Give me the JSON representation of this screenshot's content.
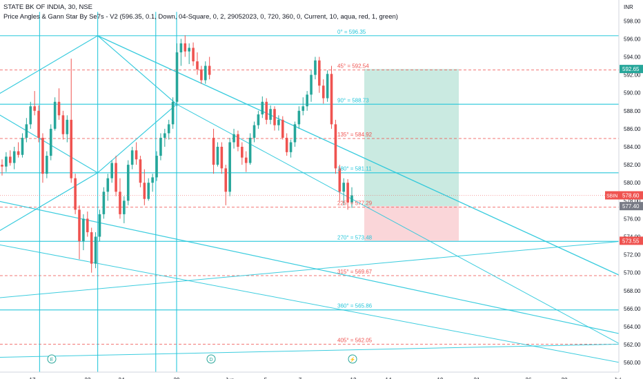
{
  "header": {
    "title": "STATE BK OF INDIA, 30, NSE",
    "study": "Price Angles & Gann Star By Se7s - V2 (596.35, 0.1, Down, 04-Square, 0, 2, 29052023, 0, 720, 360, 0, Current, 10, aqua, red, 1, green)"
  },
  "price_axis": {
    "currency": "INR",
    "ticks": [
      "598.00",
      "596.00",
      "594.00",
      "592.00",
      "590.00",
      "588.00",
      "586.00",
      "584.00",
      "582.00",
      "580.00",
      "578.00",
      "576.00",
      "574.00",
      "572.00",
      "570.00",
      "568.00",
      "566.00",
      "564.00",
      "562.00",
      "560.00"
    ]
  },
  "time_axis": {
    "ticks": [
      "17",
      "22",
      "24",
      "29",
      "Jun",
      "5",
      "7",
      "12",
      "14",
      "19",
      "21",
      "26",
      "28",
      "Jul"
    ]
  },
  "badges": {
    "target": "592.65",
    "symbol": "SBIN",
    "last": "578.60",
    "entry": "577.40",
    "stop": "573.55"
  },
  "events": [
    {
      "label": "E",
      "name": "earnings"
    },
    {
      "label": "D",
      "name": "dividend"
    },
    {
      "label": "⚡",
      "name": "split"
    }
  ],
  "colors": {
    "aqua": "#26c6da",
    "red": "#ef5350",
    "up_candle": "#26a69a",
    "down_candle": "#ef5350",
    "profit_zone": "#9fd8c8",
    "loss_zone": "#f8c0c4",
    "target_badge": "#26a69a",
    "stop_badge": "#ef5350"
  },
  "chart_data": {
    "type": "candlestick",
    "title": "STATE BK OF INDIA, 30, NSE",
    "xlabel": "",
    "ylabel": "INR",
    "ylim": [
      560,
      599
    ],
    "x": [
      "17",
      "22",
      "24",
      "29",
      "Jun",
      "5",
      "7",
      "12",
      "14",
      "19",
      "21",
      "26",
      "28",
      "Jul"
    ],
    "grid": false,
    "gann_levels": [
      {
        "angle": "0°",
        "value": 596.35,
        "color": "aqua"
      },
      {
        "angle": "45°",
        "value": 592.54,
        "color": "red"
      },
      {
        "angle": "90°",
        "value": 588.73,
        "color": "aqua"
      },
      {
        "angle": "135°",
        "value": 584.92,
        "color": "red"
      },
      {
        "angle": "180°",
        "value": 581.11,
        "color": "aqua"
      },
      {
        "angle": "225°",
        "value": 577.29,
        "color": "red"
      },
      {
        "angle": "270°",
        "value": 573.48,
        "color": "aqua"
      },
      {
        "angle": "315°",
        "value": 569.67,
        "color": "red"
      },
      {
        "angle": "360°",
        "value": 565.86,
        "color": "aqua"
      },
      {
        "angle": "405°",
        "value": 562.05,
        "color": "red"
      }
    ],
    "position": {
      "entry": 577.4,
      "target": 592.65,
      "stop": 573.55
    },
    "last_price": 578.6,
    "series": [
      {
        "name": "SBIN",
        "values": [
          [
            582.0,
            582.6,
            580.8,
            581.8
          ],
          [
            581.8,
            583.4,
            581.2,
            582.9
          ],
          [
            582.9,
            583.6,
            581.9,
            582.2
          ],
          [
            582.2,
            584.0,
            581.5,
            583.5
          ],
          [
            583.5,
            584.5,
            582.8,
            583.1
          ],
          [
            583.1,
            585.5,
            582.8,
            585.0
          ],
          [
            585.0,
            587.2,
            584.5,
            586.5
          ],
          [
            586.5,
            589.0,
            586.0,
            588.5
          ],
          [
            588.5,
            590.2,
            587.5,
            588.0
          ],
          [
            588.0,
            588.6,
            584.5,
            585.0
          ],
          [
            585.0,
            585.5,
            580.0,
            581.0
          ],
          [
            581.0,
            583.5,
            580.5,
            583.0
          ],
          [
            583.0,
            586.5,
            582.5,
            586.0
          ],
          [
            586.0,
            589.5,
            585.8,
            589.0
          ],
          [
            589.0,
            590.5,
            587.0,
            587.5
          ],
          [
            587.5,
            588.0,
            584.8,
            585.4
          ],
          [
            585.4,
            587.5,
            584.5,
            587.0
          ],
          [
            587.0,
            593.8,
            580.0,
            580.5
          ],
          [
            580.5,
            581.0,
            576.5,
            577.0
          ],
          [
            577.0,
            577.5,
            571.5,
            573.5
          ],
          [
            573.5,
            576.5,
            572.5,
            576.0
          ],
          [
            576.0,
            576.8,
            574.0,
            574.5
          ],
          [
            574.5,
            575.0,
            570.0,
            571.0
          ],
          [
            571.0,
            574.5,
            570.5,
            574.0
          ],
          [
            574.0,
            577.0,
            573.5,
            576.5
          ],
          [
            576.5,
            579.5,
            576.0,
            579.0
          ],
          [
            579.0,
            581.0,
            578.0,
            580.5
          ],
          [
            580.5,
            582.5,
            580.0,
            582.2
          ],
          [
            582.2,
            583.0,
            578.5,
            579.0
          ],
          [
            579.0,
            580.5,
            576.0,
            576.5
          ],
          [
            576.5,
            578.5,
            575.5,
            578.0
          ],
          [
            578.0,
            582.5,
            577.5,
            582.0
          ],
          [
            582.0,
            584.0,
            581.5,
            583.6
          ],
          [
            583.6,
            584.5,
            582.0,
            582.6
          ],
          [
            582.6,
            583.0,
            579.5,
            580.0
          ],
          [
            580.0,
            581.5,
            577.5,
            578.2
          ],
          [
            578.2,
            580.5,
            578.0,
            580.0
          ],
          [
            580.0,
            581.0,
            579.0,
            580.6
          ],
          [
            580.6,
            583.5,
            580.2,
            583.0
          ],
          [
            583.0,
            585.5,
            582.5,
            585.0
          ],
          [
            585.0,
            586.0,
            584.0,
            585.5
          ],
          [
            585.5,
            587.0,
            584.8,
            586.5
          ],
          [
            586.5,
            589.5,
            586.0,
            589.0
          ],
          [
            589.0,
            595.5,
            588.5,
            594.5
          ],
          [
            594.5,
            596.0,
            593.0,
            595.5
          ],
          [
            595.5,
            596.4,
            594.0,
            594.6
          ],
          [
            594.6,
            595.5,
            593.2,
            595.0
          ],
          [
            595.0,
            595.6,
            593.0,
            593.5
          ],
          [
            593.5,
            594.5,
            592.0,
            592.6
          ],
          [
            592.6,
            593.0,
            591.0,
            591.4
          ],
          [
            591.4,
            593.5,
            591.0,
            593.0
          ],
          [
            593.0,
            594.0,
            591.5,
            592.0
          ],
          [
            585.0,
            586.0,
            581.0,
            582.0
          ],
          [
            582.0,
            584.5,
            581.8,
            584.0
          ],
          [
            584.0,
            584.5,
            581.0,
            581.6
          ],
          [
            581.6,
            582.0,
            577.5,
            579.0
          ],
          [
            579.0,
            585.0,
            578.5,
            584.5
          ],
          [
            584.5,
            586.0,
            583.8,
            585.4
          ],
          [
            585.4,
            585.8,
            583.5,
            584.0
          ],
          [
            584.0,
            584.5,
            582.0,
            582.8
          ],
          [
            582.8,
            583.5,
            581.2,
            582.2
          ],
          [
            582.2,
            585.5,
            582.0,
            585.0
          ],
          [
            585.0,
            586.8,
            584.5,
            586.4
          ],
          [
            586.4,
            588.0,
            586.0,
            587.6
          ],
          [
            587.6,
            589.6,
            587.2,
            589.0
          ],
          [
            589.0,
            589.4,
            586.5,
            587.0
          ],
          [
            587.0,
            588.6,
            586.5,
            588.2
          ],
          [
            588.2,
            588.5,
            585.8,
            586.4
          ],
          [
            586.4,
            587.5,
            585.8,
            587.0
          ],
          [
            587.0,
            587.4,
            584.8,
            585.0
          ],
          [
            585.0,
            585.5,
            583.0,
            583.4
          ],
          [
            583.4,
            584.8,
            582.8,
            584.5
          ],
          [
            584.5,
            586.8,
            584.0,
            586.5
          ],
          [
            586.5,
            588.5,
            586.0,
            588.0
          ],
          [
            588.0,
            589.5,
            587.5,
            588.5
          ],
          [
            588.5,
            590.2,
            588.0,
            589.8
          ],
          [
            589.8,
            592.5,
            589.0,
            592.0
          ],
          [
            592.0,
            594.0,
            591.5,
            593.6
          ],
          [
            593.6,
            594.0,
            590.0,
            590.8
          ],
          [
            590.8,
            591.5,
            588.8,
            589.4
          ],
          [
            589.4,
            592.5,
            589.0,
            592.1
          ],
          [
            592.1,
            593.0,
            586.0,
            586.5
          ],
          [
            586.5,
            587.0,
            581.0,
            581.6
          ],
          [
            581.6,
            582.0,
            578.0,
            579.0
          ],
          [
            579.0,
            580.5,
            577.5,
            580.0
          ],
          [
            580.0,
            580.4,
            577.0,
            577.8
          ],
          [
            577.8,
            579.5,
            577.2,
            578.6
          ]
        ]
      }
    ]
  }
}
